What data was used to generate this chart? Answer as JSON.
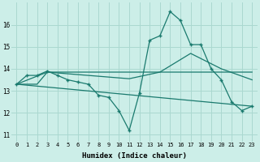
{
  "title": "",
  "xlabel": "Humidex (Indice chaleur)",
  "background_color": "#cceee8",
  "grid_color": "#aad8d0",
  "line_color": "#1a7a6e",
  "xlim": [
    -0.5,
    23.5
  ],
  "ylim": [
    10.7,
    17.0
  ],
  "xticks": [
    0,
    1,
    2,
    3,
    4,
    5,
    6,
    7,
    8,
    9,
    10,
    11,
    12,
    13,
    14,
    15,
    16,
    17,
    18,
    19,
    20,
    21,
    22,
    23
  ],
  "yticks": [
    11,
    12,
    13,
    14,
    15,
    16
  ],
  "lines": [
    {
      "x": [
        0,
        1,
        2,
        3,
        4,
        5,
        6,
        7,
        8,
        9,
        10,
        11,
        12,
        13,
        14,
        15,
        16,
        17,
        18,
        19,
        20,
        21,
        22,
        23
      ],
      "y": [
        13.3,
        13.7,
        13.7,
        13.9,
        13.7,
        13.5,
        13.4,
        13.3,
        12.8,
        12.7,
        12.1,
        11.2,
        12.9,
        15.3,
        15.5,
        16.6,
        16.2,
        15.1,
        15.1,
        14.0,
        13.5,
        12.5,
        12.1,
        12.3
      ],
      "marker": "+"
    },
    {
      "x": [
        0,
        1,
        2,
        3,
        4,
        5,
        6,
        7,
        8,
        9,
        10,
        11,
        12,
        13,
        14,
        15,
        16,
        17,
        18,
        19,
        20,
        21,
        22,
        23
      ],
      "y": [
        13.3,
        13.3,
        13.3,
        13.85,
        13.85,
        13.85,
        13.85,
        13.85,
        13.85,
        13.85,
        13.85,
        13.85,
        13.85,
        13.85,
        13.85,
        13.85,
        13.85,
        13.85,
        13.85,
        13.85,
        13.85,
        13.85,
        13.85,
        13.85
      ],
      "marker": null
    },
    {
      "x": [
        0,
        3,
        11,
        14,
        17,
        20,
        23
      ],
      "y": [
        13.3,
        13.85,
        13.55,
        13.85,
        14.7,
        14.0,
        13.5
      ],
      "marker": null
    },
    {
      "x": [
        0,
        23
      ],
      "y": [
        13.3,
        12.3
      ],
      "marker": null
    }
  ]
}
